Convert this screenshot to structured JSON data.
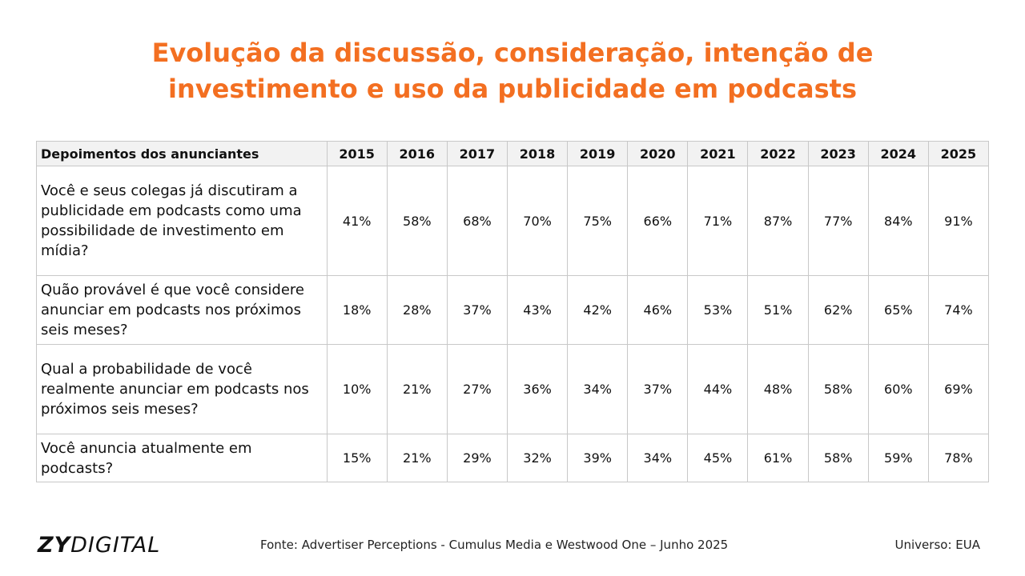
{
  "title": {
    "line1": "Evolução da discussão, consideração, intenção de",
    "line2": "investimento e uso da publicidade em podcasts"
  },
  "table": {
    "header_label": "Depoimentos dos anunciantes",
    "years": [
      "2015",
      "2016",
      "2017",
      "2018",
      "2019",
      "2020",
      "2021",
      "2022",
      "2023",
      "2024",
      "2025"
    ],
    "rows": [
      {
        "question": "Você e seus colegas já discutiram a publicidade em podcasts como uma possibilidade de investimento em mídia?",
        "values": [
          "41%",
          "58%",
          "68%",
          "70%",
          "75%",
          "66%",
          "71%",
          "87%",
          "77%",
          "84%",
          "91%"
        ]
      },
      {
        "question": "Quão provável é que você considere anunciar em podcasts nos próximos seis meses?",
        "values": [
          "18%",
          "28%",
          "37%",
          "43%",
          "42%",
          "46%",
          "53%",
          "51%",
          "62%",
          "65%",
          "74%"
        ]
      },
      {
        "question": "Qual a probabilidade de você realmente anunciar em podcasts nos próximos seis meses?",
        "values": [
          "10%",
          "21%",
          "27%",
          "36%",
          "34%",
          "37%",
          "44%",
          "48%",
          "58%",
          "60%",
          "69%"
        ]
      },
      {
        "question": "Você anuncia atualmente em podcasts?",
        "values": [
          "15%",
          "21%",
          "29%",
          "32%",
          "39%",
          "34%",
          "45%",
          "61%",
          "58%",
          "59%",
          "78%"
        ]
      }
    ]
  },
  "footer": {
    "logo_bold": "ZY",
    "logo_rest": "DIGITAL",
    "source": "Fonte: Advertiser Perceptions - Cumulus Media e Westwood One – Junho 2025",
    "universe": "Universo: EUA"
  },
  "colors": {
    "title": "#f36f21",
    "header_bg": "#f2f2f2",
    "border": "#c8c8c8"
  }
}
